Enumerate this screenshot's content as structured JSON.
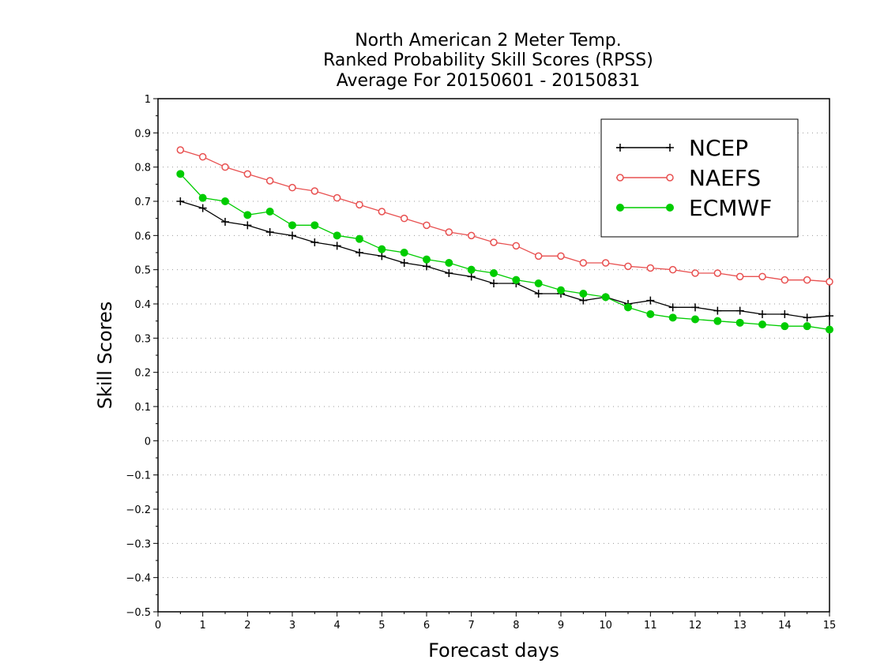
{
  "chart_data": {
    "type": "line",
    "title_lines": [
      "North American 2 Meter Temp.",
      "Ranked Probability Skill Scores (RPSS)",
      "Average For 20150601 - 20150831"
    ],
    "xlabel": "Forecast days",
    "ylabel": "Skill Scores",
    "xlim": [
      0,
      15
    ],
    "ylim": [
      -0.5,
      1
    ],
    "x_ticks": [
      "0",
      "1",
      "2",
      "3",
      "4",
      "5",
      "6",
      "7",
      "8",
      "9",
      "10",
      "11",
      "12",
      "13",
      "14",
      "15"
    ],
    "y_ticks": [
      "−0.5",
      "−0.4",
      "−0.3",
      "−0.2",
      "−0.1",
      "0",
      "0.1",
      "0.2",
      "0.3",
      "0.4",
      "0.5",
      "0.6",
      "0.7",
      "0.8",
      "0.9",
      "1"
    ],
    "grid": true,
    "legend_position": "top-right",
    "x": [
      0.5,
      1,
      1.5,
      2,
      2.5,
      3,
      3.5,
      4,
      4.5,
      5,
      5.5,
      6,
      6.5,
      7,
      7.5,
      8,
      8.5,
      9,
      9.5,
      10,
      10.5,
      11,
      11.5,
      12,
      12.5,
      13,
      13.5,
      14,
      14.5,
      15
    ],
    "series": [
      {
        "name": "NCEP",
        "color": "#000000",
        "marker": "plus",
        "values": [
          0.7,
          0.68,
          0.64,
          0.63,
          0.61,
          0.6,
          0.58,
          0.57,
          0.55,
          0.54,
          0.52,
          0.51,
          0.49,
          0.48,
          0.46,
          0.46,
          0.43,
          0.43,
          0.41,
          0.42,
          0.4,
          0.41,
          0.39,
          0.39,
          0.38,
          0.38,
          0.37,
          0.37,
          0.36,
          0.365
        ]
      },
      {
        "name": "NAEFS",
        "color": "#e85050",
        "marker": "open-circle",
        "values": [
          0.85,
          0.83,
          0.8,
          0.78,
          0.76,
          0.74,
          0.73,
          0.71,
          0.69,
          0.67,
          0.65,
          0.63,
          0.61,
          0.6,
          0.58,
          0.57,
          0.54,
          0.54,
          0.52,
          0.52,
          0.51,
          0.505,
          0.5,
          0.49,
          0.49,
          0.48,
          0.48,
          0.47,
          0.47,
          0.465
        ]
      },
      {
        "name": "ECMWF",
        "color": "#00cc00",
        "marker": "filled-circle",
        "values": [
          0.78,
          0.71,
          0.7,
          0.66,
          0.67,
          0.63,
          0.63,
          0.6,
          0.59,
          0.56,
          0.55,
          0.53,
          0.52,
          0.5,
          0.49,
          0.47,
          0.46,
          0.44,
          0.43,
          0.42,
          0.39,
          0.37,
          0.36,
          0.355,
          0.35,
          0.345,
          0.34,
          0.335,
          0.335,
          0.325
        ]
      }
    ]
  }
}
